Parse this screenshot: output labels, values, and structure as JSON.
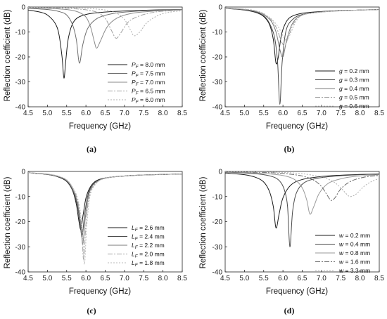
{
  "chart_data": [
    {
      "type": "line",
      "panel_label": "(a)",
      "xlabel": "Frequency (GHz)",
      "ylabel": "Reflection coefficient (dB)",
      "xlim": [
        4.5,
        8.5
      ],
      "ylim": [
        -40,
        0
      ],
      "xticks": [
        "4.5",
        "5.0",
        "5.5",
        "6.0",
        "6.5",
        "7.0",
        "7.5",
        "8.0",
        "8.5"
      ],
      "yticks": [
        "0",
        "-10",
        "-20",
        "-30",
        "-40"
      ],
      "grid": false,
      "legend_position": "lower-right",
      "series": [
        {
          "name": "P_F = 8.0 mm",
          "legend_sym": "P",
          "legend_sub": "F",
          "legend_rest": " = 8.0 mm",
          "x": [
            4.5,
            4.8,
            5.0,
            5.2,
            5.3,
            5.38,
            5.43,
            5.48,
            5.55,
            5.7,
            6.0,
            6.5,
            7.0,
            7.5,
            8.0,
            8.5
          ],
          "y": [
            -1.2,
            -2.0,
            -3.2,
            -6.5,
            -11,
            -20,
            -28.5,
            -21,
            -12,
            -5.5,
            -3.0,
            -2.0,
            -1.6,
            -1.3,
            -1.1,
            -1.0
          ],
          "color": "#1a1a1a",
          "dash": ""
        },
        {
          "name": "P_F = 7.5 mm",
          "legend_sym": "P",
          "legend_sub": "F",
          "legend_rest": " = 7.5 mm",
          "x": [
            4.5,
            5.0,
            5.3,
            5.5,
            5.65,
            5.75,
            5.83,
            5.92,
            6.05,
            6.3,
            6.7,
            7.2,
            7.8,
            8.5
          ],
          "y": [
            -0.5,
            -1.0,
            -1.8,
            -3.2,
            -7,
            -13,
            -22.5,
            -15,
            -8.5,
            -4.5,
            -2.6,
            -1.8,
            -1.3,
            -1.0
          ],
          "color": "#6e6e6e",
          "dash": ""
        },
        {
          "name": "P_F = 7.0 mm",
          "legend_sym": "P",
          "legend_sub": "F",
          "legend_rest": " = 7.0 mm",
          "x": [
            4.5,
            5.0,
            5.5,
            5.8,
            6.0,
            6.12,
            6.22,
            6.28,
            6.38,
            6.55,
            6.8,
            7.2,
            7.8,
            8.5
          ],
          "y": [
            -0.3,
            -0.5,
            -1.0,
            -2.0,
            -4.0,
            -8.0,
            -14.0,
            -16.5,
            -13.5,
            -8.0,
            -4.5,
            -2.5,
            -1.6,
            -1.1
          ],
          "color": "#8a8a8a",
          "dash": ""
        },
        {
          "name": "P_F = 6.5 mm",
          "legend_sym": "P",
          "legend_sub": "F",
          "legend_rest": " = 6.5 mm",
          "x": [
            4.5,
            5.0,
            5.5,
            6.0,
            6.3,
            6.5,
            6.65,
            6.78,
            6.9,
            7.1,
            7.4,
            7.8,
            8.2,
            8.5
          ],
          "y": [
            -0.2,
            -0.3,
            -0.5,
            -1.1,
            -2.2,
            -4.5,
            -9.0,
            -12.5,
            -10.5,
            -6.0,
            -3.5,
            -2.0,
            -1.5,
            -1.2
          ],
          "color": "#a0a0a0",
          "dash": "7,2,2,2"
        },
        {
          "name": "P_F = 6.0 mm",
          "legend_sym": "P",
          "legend_sub": "F",
          "legend_rest": " = 6.0 mm",
          "x": [
            4.5,
            5.0,
            5.5,
            6.0,
            6.5,
            6.8,
            7.0,
            7.15,
            7.25,
            7.4,
            7.6,
            7.9,
            8.2,
            8.5
          ],
          "y": [
            -0.1,
            -0.2,
            -0.3,
            -0.5,
            -1.2,
            -2.5,
            -5.0,
            -9.0,
            -11.5,
            -10.0,
            -6.0,
            -3.2,
            -2.0,
            -1.5
          ],
          "color": "#b0b0b0",
          "dash": "2,2"
        }
      ]
    },
    {
      "type": "line",
      "panel_label": "(b)",
      "xlabel": "Frequency (GHz)",
      "ylabel": "Reflection coefficient (dB)",
      "xlim": [
        4.5,
        8.5
      ],
      "ylim": [
        -40,
        0
      ],
      "xticks": [
        "4.5",
        "5.0",
        "5.5",
        "6.0",
        "6.5",
        "7.0",
        "7.5",
        "8.0",
        "8.5"
      ],
      "yticks": [
        "0",
        "-10",
        "-20",
        "-30",
        "-40"
      ],
      "grid": false,
      "legend_position": "lower-right",
      "series": [
        {
          "name": "g = 0.2 mm",
          "legend_sym": "g",
          "legend_sub": "",
          "legend_rest": " = 0.2 mm",
          "x": [
            4.5,
            5.0,
            5.3,
            5.5,
            5.65,
            5.75,
            5.82,
            5.88,
            5.95,
            6.05,
            6.2,
            6.5,
            7.0,
            7.5,
            8.0,
            8.5
          ],
          "y": [
            -0.5,
            -1.2,
            -2.2,
            -3.8,
            -7.0,
            -13,
            -22.5,
            -20,
            -12,
            -7.0,
            -4.0,
            -2.5,
            -1.8,
            -1.4,
            -1.2,
            -1.0
          ],
          "color": "#1a1a1a",
          "dash": ""
        },
        {
          "name": "g = 0.3 mm",
          "legend_sym": "g",
          "legend_sub": "",
          "legend_rest": " = 0.3 mm",
          "x": [
            4.5,
            5.0,
            5.3,
            5.5,
            5.65,
            5.78,
            5.86,
            5.92,
            5.98,
            6.08,
            6.25,
            6.5,
            7.0,
            7.5,
            8.0,
            8.5
          ],
          "y": [
            -0.5,
            -1.1,
            -2.0,
            -3.5,
            -6.5,
            -12,
            -22,
            -39,
            -22,
            -9.5,
            -5.0,
            -3.0,
            -1.9,
            -1.4,
            -1.2,
            -1.0
          ],
          "color": "#4a4a4a",
          "dash": ""
        },
        {
          "name": "g = 0.4 mm",
          "legend_sym": "g",
          "legend_sub": "",
          "legend_rest": " = 0.4 mm",
          "x": [
            4.5,
            5.0,
            5.3,
            5.5,
            5.7,
            5.82,
            5.92,
            6.0,
            6.1,
            6.25,
            6.5,
            7.0,
            7.5,
            8.0,
            8.5
          ],
          "y": [
            -0.5,
            -1.0,
            -1.8,
            -3.0,
            -5.8,
            -10,
            -17,
            -20,
            -13,
            -6.5,
            -3.2,
            -2.0,
            -1.5,
            -1.2,
            -1.0
          ],
          "color": "#7a7a7a",
          "dash": ""
        },
        {
          "name": "g = 0.5 mm",
          "legend_sym": "g",
          "legend_sub": "",
          "legend_rest": " = 0.5 mm",
          "x": [
            4.5,
            5.0,
            5.3,
            5.5,
            5.7,
            5.85,
            5.95,
            6.05,
            6.15,
            6.3,
            6.5,
            7.0,
            7.5,
            8.0,
            8.5
          ],
          "y": [
            -0.4,
            -0.9,
            -1.6,
            -2.8,
            -5.2,
            -9.0,
            -13.5,
            -15.5,
            -11.5,
            -6.0,
            -3.2,
            -2.0,
            -1.5,
            -1.2,
            -1.0
          ],
          "color": "#a0a0a0",
          "dash": "7,2,2,2"
        },
        {
          "name": "g = 0.6 mm",
          "legend_sym": "g",
          "legend_sub": "",
          "legend_rest": " = 0.6 mm",
          "x": [
            4.5,
            5.0,
            5.3,
            5.5,
            5.7,
            5.88,
            6.0,
            6.1,
            6.2,
            6.35,
            6.55,
            7.0,
            7.5,
            8.0,
            8.5
          ],
          "y": [
            -0.4,
            -0.8,
            -1.5,
            -2.6,
            -4.8,
            -8.0,
            -11.5,
            -13.5,
            -10.5,
            -5.5,
            -3.0,
            -2.0,
            -1.5,
            -1.2,
            -1.0
          ],
          "color": "#b8b8b8",
          "dash": "2,2"
        }
      ]
    },
    {
      "type": "line",
      "panel_label": "(c)",
      "xlabel": "Frequency (GHz)",
      "ylabel": "Reflection coefficient (dB)",
      "xlim": [
        4.5,
        8.5
      ],
      "ylim": [
        -40,
        0
      ],
      "xticks": [
        "4.5",
        "5.0",
        "5.5",
        "6.0",
        "6.5",
        "7.0",
        "7.5",
        "8.0",
        "8.5"
      ],
      "yticks": [
        "0",
        "-10",
        "-20",
        "-30",
        "-40"
      ],
      "grid": false,
      "legend_position": "lower-right",
      "series": [
        {
          "name": "L_F = 2.6 mm",
          "legend_sym": "L",
          "legend_sub": "F",
          "legend_rest": " = 2.6 mm",
          "x": [
            4.5,
            5.0,
            5.3,
            5.5,
            5.65,
            5.75,
            5.82,
            5.87,
            5.93,
            6.02,
            6.2,
            6.5,
            7.0,
            7.5,
            8.0,
            8.5
          ],
          "y": [
            -0.5,
            -1.2,
            -2.3,
            -4.0,
            -7.5,
            -13,
            -20,
            -23,
            -17,
            -9.5,
            -4.5,
            -2.6,
            -1.8,
            -1.4,
            -1.2,
            -1.0
          ],
          "color": "#1a1a1a",
          "dash": ""
        },
        {
          "name": "L_F = 2.4 mm",
          "legend_sym": "L",
          "legend_sub": "F",
          "legend_rest": " = 2.4 mm",
          "x": [
            4.5,
            5.0,
            5.3,
            5.5,
            5.65,
            5.77,
            5.85,
            5.9,
            5.96,
            6.05,
            6.2,
            6.5,
            7.0,
            7.5,
            8.0,
            8.5
          ],
          "y": [
            -0.5,
            -1.2,
            -2.2,
            -3.8,
            -7.2,
            -13,
            -21,
            -26,
            -18,
            -9.5,
            -4.8,
            -2.7,
            -1.8,
            -1.4,
            -1.2,
            -1.0
          ],
          "color": "#4a4a4a",
          "dash": ""
        },
        {
          "name": "L_F = 2.2 mm",
          "legend_sym": "L",
          "legend_sub": "F",
          "legend_rest": " = 2.2 mm",
          "x": [
            4.5,
            5.0,
            5.3,
            5.5,
            5.65,
            5.78,
            5.87,
            5.92,
            5.98,
            6.07,
            6.22,
            6.5,
            7.0,
            7.5,
            8.0,
            8.5
          ],
          "y": [
            -0.5,
            -1.1,
            -2.1,
            -3.6,
            -6.8,
            -12.5,
            -22,
            -29,
            -19,
            -9.5,
            -4.8,
            -2.7,
            -1.8,
            -1.4,
            -1.2,
            -1.0
          ],
          "color": "#7a7a7a",
          "dash": ""
        },
        {
          "name": "L_F = 2.0 mm",
          "legend_sym": "L",
          "legend_sub": "F",
          "legend_rest": " = 2.0 mm",
          "x": [
            4.5,
            5.0,
            5.3,
            5.5,
            5.65,
            5.79,
            5.89,
            5.94,
            6.0,
            6.09,
            6.25,
            6.5,
            7.0,
            7.5,
            8.0,
            8.5
          ],
          "y": [
            -0.5,
            -1.1,
            -2.0,
            -3.5,
            -6.5,
            -12,
            -23,
            -35,
            -21,
            -9.5,
            -4.8,
            -2.7,
            -1.8,
            -1.4,
            -1.2,
            -1.0
          ],
          "color": "#a0a0a0",
          "dash": "7,2,2,2"
        },
        {
          "name": "L_F = 1.8 mm",
          "legend_sym": "L",
          "legend_sub": "F",
          "legend_rest": " = 1.8 mm",
          "x": [
            4.5,
            5.0,
            5.3,
            5.5,
            5.65,
            5.8,
            5.9,
            5.96,
            6.02,
            6.11,
            6.27,
            6.5,
            7.0,
            7.5,
            8.0,
            8.5
          ],
          "y": [
            -0.5,
            -1.0,
            -1.9,
            -3.3,
            -6.2,
            -11.5,
            -22,
            -37,
            -22,
            -9.5,
            -4.8,
            -2.7,
            -1.8,
            -1.4,
            -1.2,
            -1.0
          ],
          "color": "#b8b8b8",
          "dash": "2,2"
        }
      ]
    },
    {
      "type": "line",
      "panel_label": "(d)",
      "xlabel": "Frequency (GHz)",
      "ylabel": "Reflection coefficient (dB)",
      "xlim": [
        4.5,
        8.5
      ],
      "ylim": [
        -40,
        0
      ],
      "xticks": [
        "4.5",
        "5.0",
        "5.5",
        "6.0",
        "6.5",
        "7.0",
        "7.5",
        "8.0",
        "8.5"
      ],
      "yticks": [
        "0",
        "-10",
        "-20",
        "-30",
        "-40"
      ],
      "grid": false,
      "legend_position": "lower-right",
      "series": [
        {
          "name": "w = 0.2 mm",
          "legend_sym": "w",
          "legend_sub": "",
          "legend_rest": " = 0.2 mm",
          "x": [
            4.5,
            5.0,
            5.3,
            5.5,
            5.65,
            5.75,
            5.82,
            5.9,
            6.0,
            6.2,
            6.5,
            7.0,
            7.5,
            8.0,
            8.5
          ],
          "y": [
            -0.6,
            -1.3,
            -2.4,
            -4.2,
            -8.0,
            -14,
            -22.5,
            -17,
            -10.5,
            -5.5,
            -3.2,
            -2.0,
            -1.5,
            -1.2,
            -1.0
          ],
          "color": "#1a1a1a",
          "dash": ""
        },
        {
          "name": "w = 0.4 mm",
          "legend_sym": "w",
          "legend_sub": "",
          "legend_rest": " = 0.4 mm",
          "x": [
            4.5,
            5.0,
            5.5,
            5.8,
            5.95,
            6.05,
            6.12,
            6.18,
            6.25,
            6.35,
            6.55,
            6.9,
            7.4,
            8.0,
            8.5
          ],
          "y": [
            -0.3,
            -0.6,
            -1.3,
            -2.5,
            -4.5,
            -8.0,
            -14,
            -30,
            -16,
            -8.5,
            -4.5,
            -2.7,
            -1.8,
            -1.3,
            -1.1
          ],
          "color": "#4a4a4a",
          "dash": ""
        },
        {
          "name": "w = 0.8 mm",
          "legend_sym": "w",
          "legend_sub": "",
          "legend_rest": " = 0.8 mm",
          "x": [
            4.5,
            5.0,
            5.5,
            6.0,
            6.3,
            6.5,
            6.62,
            6.7,
            6.8,
            6.95,
            7.2,
            7.6,
            8.0,
            8.5
          ],
          "y": [
            -0.2,
            -0.4,
            -0.8,
            -1.6,
            -3.2,
            -6.5,
            -11.5,
            -17,
            -14,
            -8.5,
            -4.5,
            -2.6,
            -1.8,
            -1.3
          ],
          "color": "#9a9a9a",
          "dash": ""
        },
        {
          "name": "w = 1.6 mm",
          "legend_sym": "w",
          "legend_sub": "",
          "legend_rest": " = 1.6 mm",
          "x": [
            4.5,
            5.0,
            5.5,
            6.0,
            6.5,
            6.8,
            7.0,
            7.15,
            7.25,
            7.35,
            7.5,
            7.75,
            8.1,
            8.5
          ],
          "y": [
            -0.1,
            -0.2,
            -0.4,
            -0.8,
            -1.8,
            -3.5,
            -6.0,
            -9.5,
            -11.5,
            -10.5,
            -7.0,
            -4.0,
            -2.3,
            -1.6
          ],
          "color": "#6a6a6a",
          "dash": "7,2,2,2"
        },
        {
          "name": "w = 3.3 mm",
          "legend_sym": "w",
          "legend_sub": "",
          "legend_rest": " = 3.3 mm",
          "x": [
            4.5,
            5.0,
            5.5,
            6.0,
            6.5,
            7.0,
            7.3,
            7.5,
            7.65,
            7.75,
            7.9,
            8.1,
            8.3,
            8.5
          ],
          "y": [
            -0.1,
            -0.1,
            -0.2,
            -0.4,
            -0.9,
            -2.2,
            -4.0,
            -6.5,
            -9.0,
            -10,
            -9.0,
            -6.0,
            -4.0,
            -2.8
          ],
          "color": "#b0b0b0",
          "dash": "2,2"
        }
      ]
    }
  ]
}
